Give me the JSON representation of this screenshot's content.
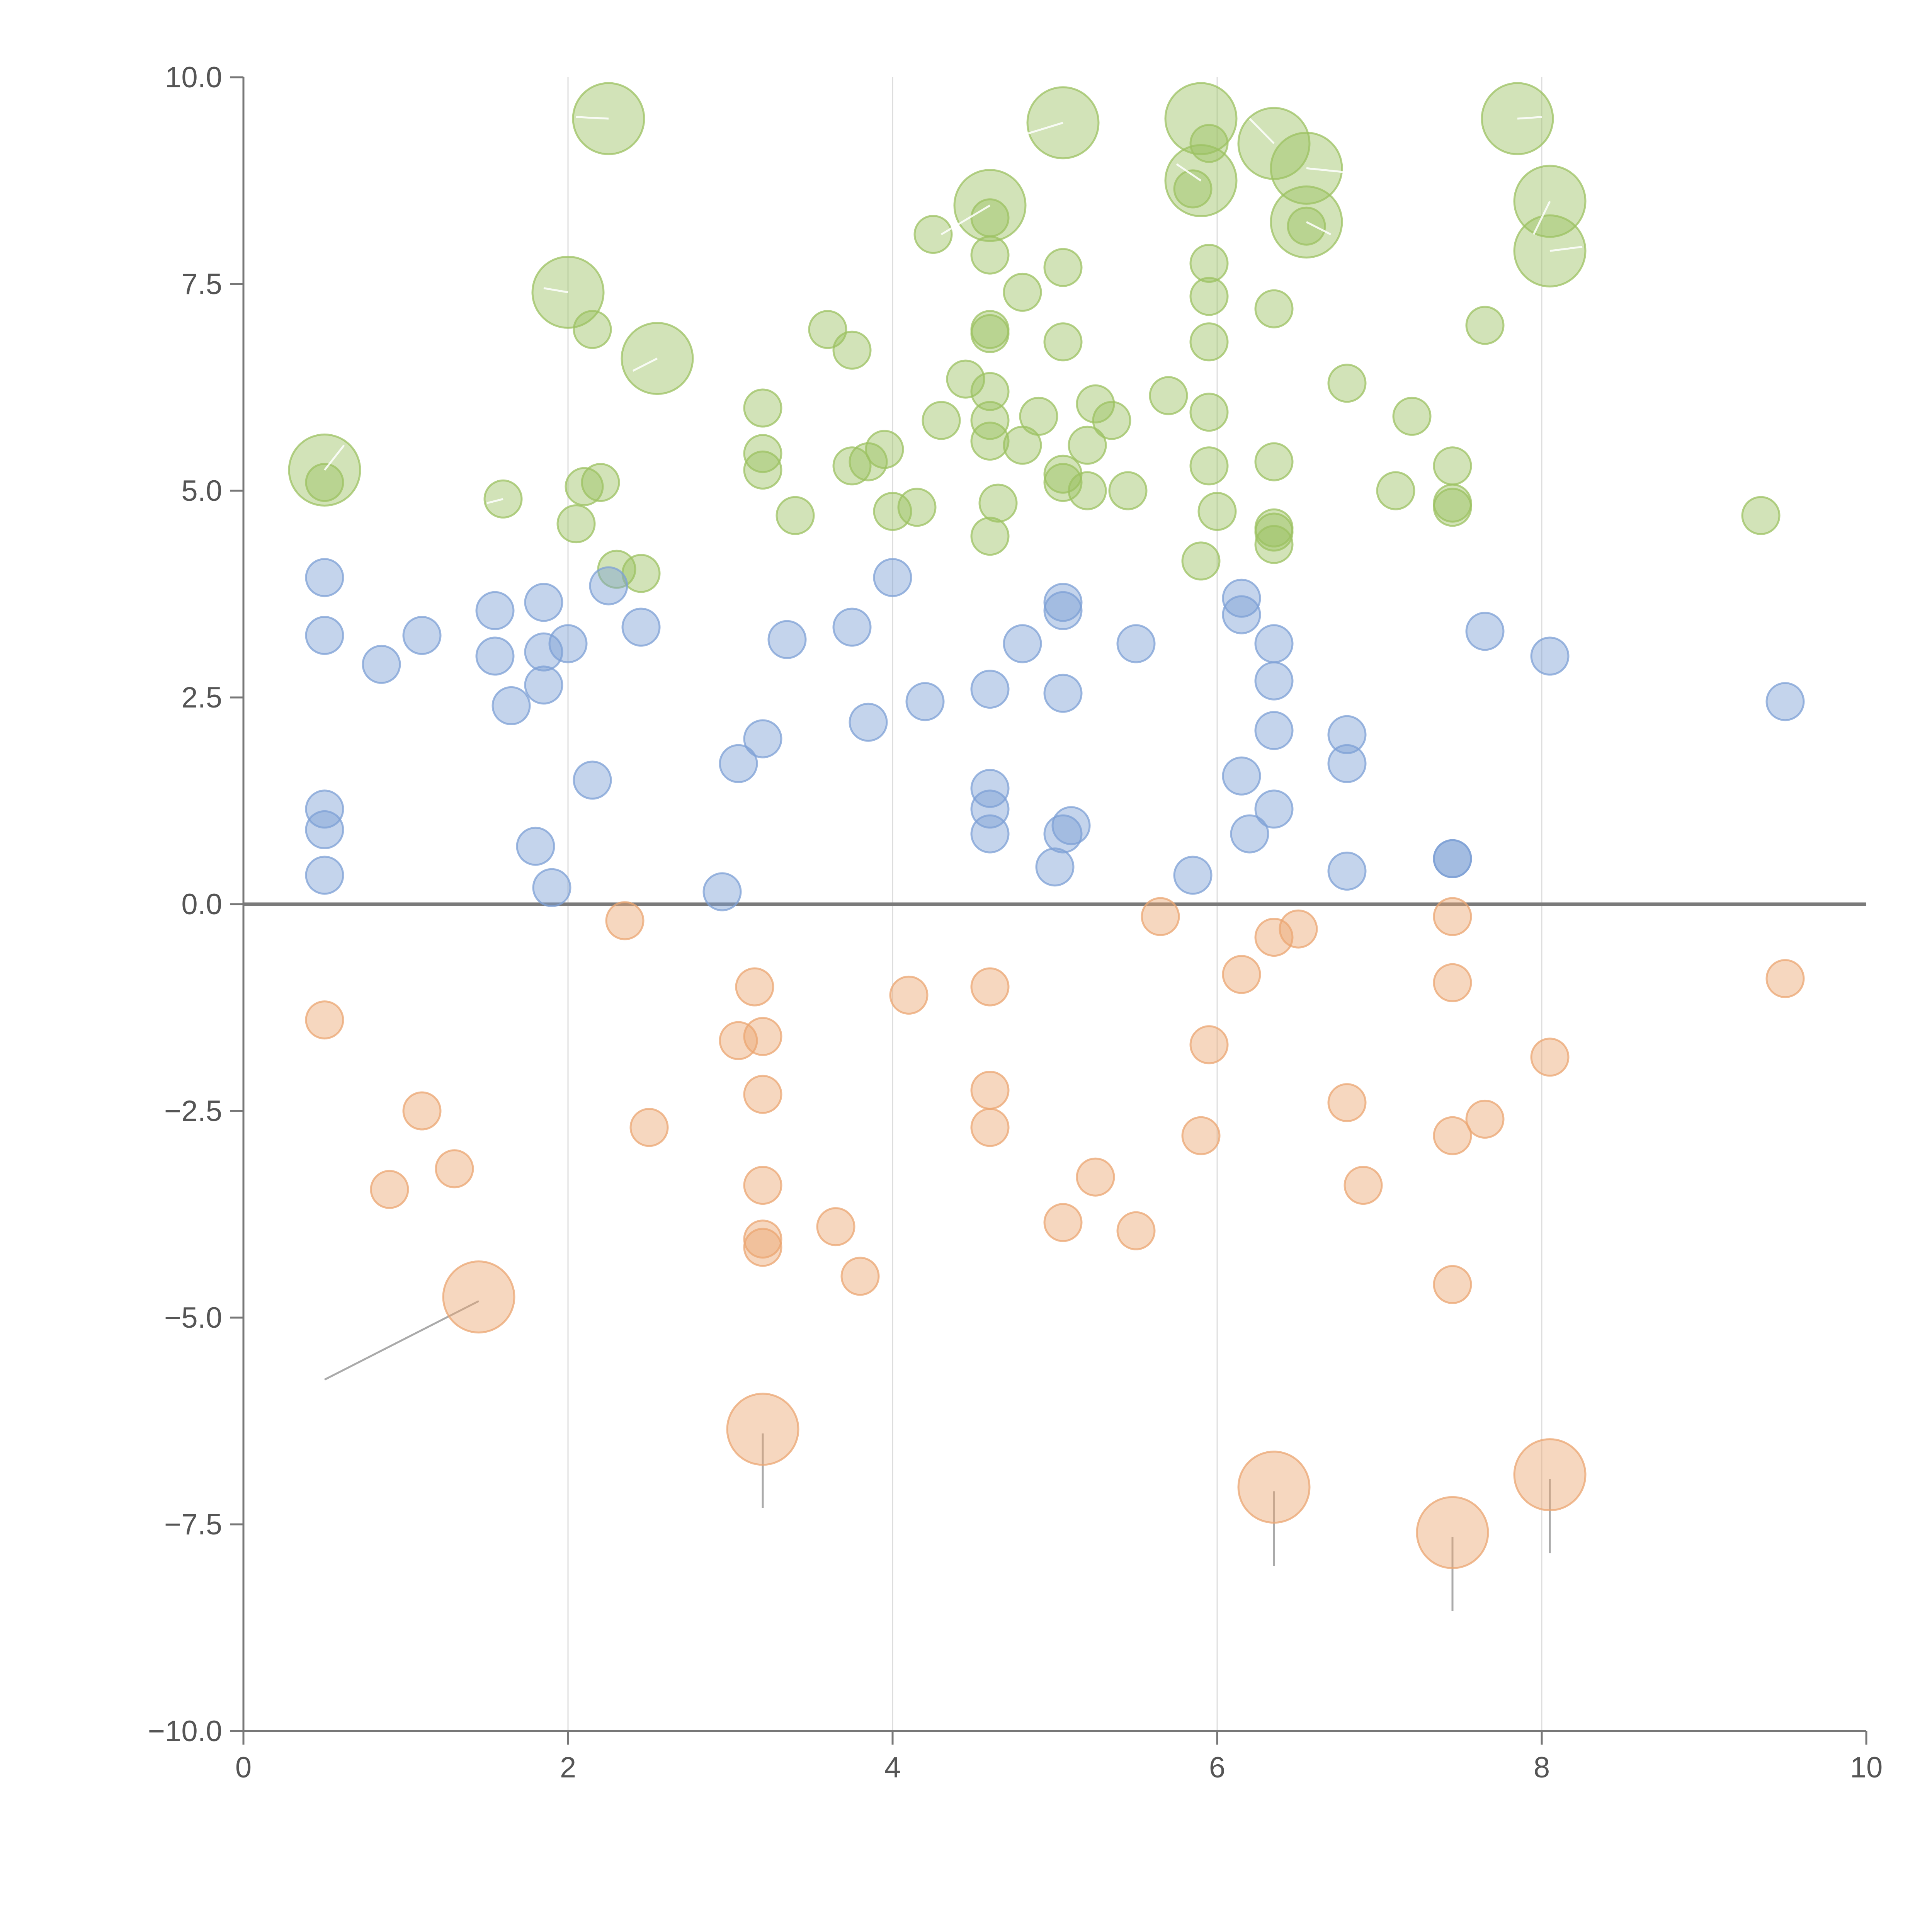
{
  "chart_data": {
    "type": "scatter",
    "title": "",
    "xlabel": "",
    "ylabel": "",
    "xlim": [
      0,
      10
    ],
    "ylim": [
      -10,
      10
    ],
    "x_ticks": [
      0,
      2,
      4,
      6,
      8,
      10
    ],
    "x_tick_labels": [
      "0",
      "2",
      "4",
      "6",
      "8",
      "10"
    ],
    "y_ticks": [
      10,
      7.5,
      5,
      2.5,
      0,
      -2.5,
      -5,
      -7.5,
      -10
    ],
    "y_tick_labels": [
      "10.0",
      "7.5",
      "5.0",
      "2.5",
      "0.0",
      "−2.5",
      "−5.0",
      "−7.5",
      "−10.0"
    ],
    "vertical_gridlines_at": [
      2,
      4,
      6,
      8
    ],
    "reference_line_y": 0,
    "colors": {
      "green": "#9cc261",
      "blue": "#7da0d5",
      "orange": "#eba671",
      "axis": "#777777",
      "grid": "#dddddd",
      "zero_line": "#7a7a7a",
      "callout_dark": "#aaaaaa",
      "callout_light": "#ffffff"
    },
    "series": [
      {
        "name": "green",
        "color": "#9cc261",
        "points": [
          [
            0.5,
            5.25,
            1
          ],
          [
            0.5,
            5.1,
            0
          ],
          [
            1.6,
            4.9,
            0
          ],
          [
            2.0,
            7.4,
            1
          ],
          [
            2.15,
            6.95,
            0
          ],
          [
            2.25,
            9.5,
            1
          ],
          [
            2.55,
            6.6,
            1
          ],
          [
            2.1,
            5.05,
            0
          ],
          [
            2.2,
            5.1,
            0
          ],
          [
            2.05,
            4.6,
            0
          ],
          [
            2.3,
            4.05,
            0
          ],
          [
            2.45,
            4.0,
            0
          ],
          [
            3.2,
            6.0,
            0
          ],
          [
            3.2,
            5.45,
            0
          ],
          [
            3.2,
            5.25,
            0
          ],
          [
            3.4,
            4.7,
            0
          ],
          [
            3.6,
            6.95,
            0
          ],
          [
            3.75,
            6.7,
            0
          ],
          [
            3.75,
            5.3,
            0
          ],
          [
            3.85,
            5.35,
            0
          ],
          [
            3.95,
            5.5,
            0
          ],
          [
            4.0,
            4.75,
            0
          ],
          [
            4.15,
            4.8,
            0
          ],
          [
            4.25,
            8.1,
            0
          ],
          [
            4.3,
            5.85,
            0
          ],
          [
            4.45,
            6.35,
            0
          ],
          [
            4.6,
            8.45,
            1
          ],
          [
            4.6,
            8.3,
            0
          ],
          [
            4.6,
            7.85,
            0
          ],
          [
            4.6,
            6.95,
            0
          ],
          [
            4.6,
            6.9,
            0
          ],
          [
            4.6,
            6.2,
            0
          ],
          [
            4.6,
            5.85,
            0
          ],
          [
            4.6,
            5.6,
            0
          ],
          [
            4.6,
            4.45,
            0
          ],
          [
            4.65,
            4.85,
            0
          ],
          [
            4.8,
            5.55,
            0
          ],
          [
            4.8,
            7.4,
            0
          ],
          [
            4.9,
            5.9,
            0
          ],
          [
            5.05,
            9.45,
            1
          ],
          [
            5.05,
            7.7,
            0
          ],
          [
            5.05,
            6.8,
            0
          ],
          [
            5.05,
            5.2,
            0
          ],
          [
            5.05,
            5.1,
            0
          ],
          [
            5.2,
            5.55,
            0
          ],
          [
            5.2,
            5.0,
            0
          ],
          [
            5.25,
            6.05,
            0
          ],
          [
            5.35,
            5.85,
            0
          ],
          [
            5.45,
            5.0,
            0
          ],
          [
            5.7,
            6.15,
            0
          ],
          [
            5.9,
            8.75,
            1
          ],
          [
            5.9,
            9.5,
            1
          ],
          [
            5.9,
            4.15,
            0
          ],
          [
            5.85,
            8.65,
            0
          ],
          [
            5.95,
            9.2,
            0
          ],
          [
            5.95,
            7.75,
            0
          ],
          [
            5.95,
            7.35,
            0
          ],
          [
            5.95,
            6.8,
            0
          ],
          [
            5.95,
            5.95,
            0
          ],
          [
            5.95,
            5.3,
            0
          ],
          [
            6.0,
            4.75,
            0
          ],
          [
            6.35,
            9.2,
            1
          ],
          [
            6.35,
            7.2,
            0
          ],
          [
            6.35,
            5.35,
            0
          ],
          [
            6.35,
            4.55,
            0
          ],
          [
            6.35,
            4.5,
            0
          ],
          [
            6.35,
            4.35,
            0
          ],
          [
            6.55,
            8.9,
            1
          ],
          [
            6.55,
            8.25,
            1
          ],
          [
            6.55,
            8.2,
            0
          ],
          [
            6.8,
            6.3,
            0
          ],
          [
            7.1,
            5.0,
            0
          ],
          [
            7.2,
            5.9,
            0
          ],
          [
            7.45,
            5.3,
            0
          ],
          [
            7.45,
            4.8,
            0
          ],
          [
            7.45,
            4.85,
            0
          ],
          [
            7.65,
            7.0,
            0
          ],
          [
            7.85,
            9.5,
            1
          ],
          [
            8.05,
            8.5,
            1
          ],
          [
            8.05,
            7.9,
            1
          ],
          [
            9.35,
            4.7,
            0
          ]
        ]
      },
      {
        "name": "blue",
        "color": "#7da0d5",
        "points": [
          [
            0.5,
            3.95,
            0
          ],
          [
            0.5,
            3.25,
            0
          ],
          [
            0.5,
            1.15,
            0
          ],
          [
            0.5,
            0.9,
            0
          ],
          [
            0.5,
            0.35,
            0
          ],
          [
            0.85,
            2.9,
            0
          ],
          [
            1.1,
            3.25,
            0
          ],
          [
            1.55,
            3.55,
            0
          ],
          [
            1.55,
            3.0,
            0
          ],
          [
            1.65,
            2.4,
            0
          ],
          [
            1.8,
            0.7,
            0
          ],
          [
            1.85,
            3.65,
            0
          ],
          [
            1.85,
            3.05,
            0
          ],
          [
            1.85,
            2.65,
            0
          ],
          [
            1.9,
            0.2,
            0
          ],
          [
            2.0,
            3.15,
            0
          ],
          [
            2.15,
            1.5,
            0
          ],
          [
            2.25,
            3.85,
            0
          ],
          [
            2.45,
            3.35,
            0
          ],
          [
            2.95,
            0.15,
            0
          ],
          [
            3.05,
            1.7,
            0
          ],
          [
            3.2,
            2.0,
            0
          ],
          [
            3.35,
            3.2,
            0
          ],
          [
            3.75,
            3.35,
            0
          ],
          [
            3.85,
            2.2,
            0
          ],
          [
            4.0,
            3.95,
            0
          ],
          [
            4.2,
            2.45,
            0
          ],
          [
            4.6,
            2.6,
            0
          ],
          [
            4.6,
            1.4,
            0
          ],
          [
            4.6,
            1.15,
            0
          ],
          [
            4.6,
            0.85,
            0
          ],
          [
            4.8,
            3.15,
            0
          ],
          [
            5.0,
            0.45,
            0
          ],
          [
            5.05,
            3.65,
            0
          ],
          [
            5.05,
            3.55,
            0
          ],
          [
            5.05,
            2.55,
            0
          ],
          [
            5.05,
            0.85,
            0
          ],
          [
            5.1,
            0.95,
            0
          ],
          [
            5.5,
            3.15,
            0
          ],
          [
            5.85,
            0.35,
            0
          ],
          [
            6.15,
            3.7,
            0
          ],
          [
            6.15,
            3.5,
            0
          ],
          [
            6.15,
            1.55,
            0
          ],
          [
            6.2,
            0.85,
            0
          ],
          [
            6.35,
            3.15,
            0
          ],
          [
            6.35,
            2.7,
            0
          ],
          [
            6.35,
            2.1,
            0
          ],
          [
            6.35,
            1.15,
            0
          ],
          [
            6.8,
            2.05,
            0
          ],
          [
            6.8,
            1.7,
            0
          ],
          [
            6.8,
            0.4,
            0
          ],
          [
            7.45,
            0.55,
            0
          ],
          [
            7.45,
            0.55,
            0
          ],
          [
            7.65,
            3.3,
            0
          ],
          [
            8.05,
            3.0,
            0
          ],
          [
            9.5,
            2.45,
            0
          ]
        ]
      },
      {
        "name": "orange",
        "color": "#eba671",
        "points": [
          [
            0.5,
            -1.4,
            0
          ],
          [
            0.9,
            -3.45,
            0
          ],
          [
            1.1,
            -2.5,
            0
          ],
          [
            1.3,
            -3.2,
            0
          ],
          [
            1.45,
            -4.75,
            1
          ],
          [
            2.35,
            -0.2,
            0
          ],
          [
            2.5,
            -2.7,
            0
          ],
          [
            3.05,
            -1.65,
            0
          ],
          [
            3.15,
            -1.0,
            0
          ],
          [
            3.2,
            -1.6,
            0
          ],
          [
            3.2,
            -2.3,
            0
          ],
          [
            3.2,
            -3.4,
            0
          ],
          [
            3.2,
            -4.05,
            0
          ],
          [
            3.2,
            -4.15,
            0
          ],
          [
            3.2,
            -6.35,
            1
          ],
          [
            3.65,
            -3.9,
            0
          ],
          [
            3.8,
            -4.5,
            0
          ],
          [
            4.1,
            -1.1,
            0
          ],
          [
            4.6,
            -1.0,
            0
          ],
          [
            4.6,
            -2.25,
            0
          ],
          [
            4.6,
            -2.7,
            0
          ],
          [
            5.05,
            -3.85,
            0
          ],
          [
            5.25,
            -3.3,
            0
          ],
          [
            5.5,
            -3.95,
            0
          ],
          [
            5.65,
            -0.15,
            0
          ],
          [
            5.9,
            -2.8,
            0
          ],
          [
            5.95,
            -1.7,
            0
          ],
          [
            6.15,
            -0.85,
            0
          ],
          [
            6.35,
            -0.4,
            0
          ],
          [
            6.35,
            -7.05,
            1
          ],
          [
            6.5,
            -0.3,
            0
          ],
          [
            6.8,
            -2.4,
            0
          ],
          [
            6.9,
            -3.4,
            0
          ],
          [
            7.45,
            -0.15,
            0
          ],
          [
            7.45,
            -0.95,
            0
          ],
          [
            7.45,
            -2.8,
            0
          ],
          [
            7.45,
            -4.6,
            0
          ],
          [
            7.45,
            -7.6,
            1
          ],
          [
            7.65,
            -2.6,
            0
          ],
          [
            8.05,
            -1.85,
            0
          ],
          [
            8.05,
            -6.9,
            1
          ],
          [
            9.5,
            -0.9,
            0
          ]
        ]
      }
    ],
    "callout_lines": [
      {
        "from": [
          1.45,
          -4.8
        ],
        "to": [
          0.5,
          -5.75
        ],
        "style": "dark"
      },
      {
        "from": [
          3.2,
          -6.4
        ],
        "to": [
          3.2,
          -7.3
        ],
        "style": "dark"
      },
      {
        "from": [
          6.35,
          -7.1
        ],
        "to": [
          6.35,
          -8.0
        ],
        "style": "dark"
      },
      {
        "from": [
          7.45,
          -7.65
        ],
        "to": [
          7.45,
          -8.55
        ],
        "style": "dark"
      },
      {
        "from": [
          8.05,
          -6.95
        ],
        "to": [
          8.05,
          -7.85
        ],
        "style": "dark"
      },
      {
        "from": [
          0.5,
          5.25
        ],
        "to": [
          0.62,
          5.55
        ],
        "style": "light"
      },
      {
        "from": [
          2.0,
          7.4
        ],
        "to": [
          1.85,
          7.45
        ],
        "style": "light"
      },
      {
        "from": [
          2.25,
          9.5
        ],
        "to": [
          2.05,
          9.52
        ],
        "style": "light"
      },
      {
        "from": [
          2.55,
          6.6
        ],
        "to": [
          2.4,
          6.45
        ],
        "style": "light"
      },
      {
        "from": [
          4.6,
          8.45
        ],
        "to": [
          4.3,
          8.1
        ],
        "style": "light"
      },
      {
        "from": [
          5.05,
          9.45
        ],
        "to": [
          4.8,
          9.3
        ],
        "style": "light"
      },
      {
        "from": [
          5.9,
          8.75
        ],
        "to": [
          5.75,
          8.95
        ],
        "style": "light"
      },
      {
        "from": [
          6.35,
          9.2
        ],
        "to": [
          6.2,
          9.5
        ],
        "style": "light"
      },
      {
        "from": [
          6.55,
          8.9
        ],
        "to": [
          6.8,
          8.85
        ],
        "style": "light"
      },
      {
        "from": [
          6.55,
          8.25
        ],
        "to": [
          6.7,
          8.1
        ],
        "style": "light"
      },
      {
        "from": [
          7.85,
          9.5
        ],
        "to": [
          8.0,
          9.52
        ],
        "style": "light"
      },
      {
        "from": [
          8.05,
          8.5
        ],
        "to": [
          7.95,
          8.1
        ],
        "style": "light"
      },
      {
        "from": [
          8.05,
          7.9
        ],
        "to": [
          8.25,
          7.95
        ],
        "style": "light"
      },
      {
        "from": [
          1.6,
          4.9
        ],
        "to": [
          1.5,
          4.85
        ],
        "style": "light"
      }
    ]
  }
}
